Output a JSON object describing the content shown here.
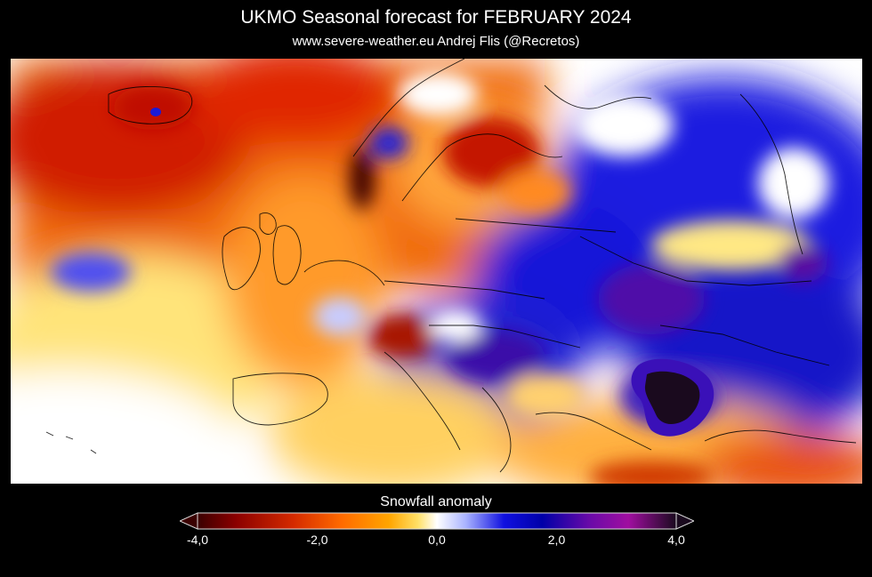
{
  "title": "UKMO Seasonal forecast for  FEBRUARY 2024",
  "subtitle": "www.severe-weather.eu  Andrej Flis (@Recretos)",
  "legend": {
    "title": "Snowfall anomaly",
    "ticks": [
      "-4,0",
      "-2,0",
      "0,0",
      "2,0",
      "4,0"
    ],
    "tick_values": [
      -4,
      -2,
      0,
      2,
      4
    ],
    "range": [
      -4,
      4
    ],
    "colors": [
      "#3a0000",
      "#8b0000",
      "#d42a00",
      "#ff6a00",
      "#ffa500",
      "#ffe066",
      "#ffffff",
      "#aab4ff",
      "#1010e0",
      "#0000a8",
      "#6a0aa8",
      "#a00ea0",
      "#1a0a1e"
    ]
  },
  "map": {
    "region": "Europe",
    "variable": "Snowfall anomaly",
    "month": "FEBRUARY 2024"
  }
}
